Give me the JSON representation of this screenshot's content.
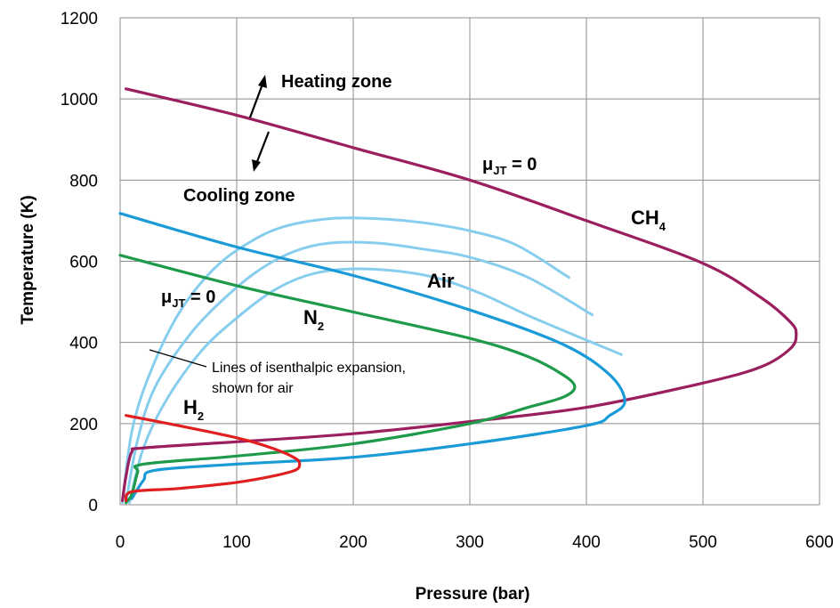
{
  "chart_data": {
    "type": "line",
    "xlabel": "Pressure (bar)",
    "ylabel": "Temperature (K)",
    "xlim": [
      0,
      600
    ],
    "ylim": [
      0,
      1200
    ],
    "x_ticks": [
      "0",
      "100",
      "200",
      "300",
      "400",
      "500",
      "600"
    ],
    "y_ticks": [
      "0",
      "200",
      "400",
      "600",
      "800",
      "1000",
      "1200"
    ],
    "grid": true,
    "series": [
      {
        "name": "CH4",
        "color": "#9b1f5e",
        "points": [
          [
            5,
            1025
          ],
          [
            100,
            960
          ],
          [
            200,
            880
          ],
          [
            300,
            800
          ],
          [
            400,
            700
          ],
          [
            500,
            595
          ],
          [
            550,
            510
          ],
          [
            575,
            450
          ],
          [
            580,
            420
          ],
          [
            575,
            385
          ],
          [
            550,
            340
          ],
          [
            500,
            300
          ],
          [
            400,
            240
          ],
          [
            300,
            205
          ],
          [
            200,
            175
          ],
          [
            100,
            155
          ],
          [
            20,
            140
          ],
          [
            10,
            130
          ],
          [
            5,
            70
          ],
          [
            2,
            10
          ]
        ]
      },
      {
        "name": "Air",
        "color": "#1a9bd7",
        "points": [
          [
            0,
            718
          ],
          [
            100,
            635
          ],
          [
            200,
            565
          ],
          [
            300,
            480
          ],
          [
            380,
            395
          ],
          [
            420,
            320
          ],
          [
            433,
            255
          ],
          [
            420,
            220
          ],
          [
            400,
            195
          ],
          [
            300,
            150
          ],
          [
            200,
            117
          ],
          [
            100,
            100
          ],
          [
            30,
            85
          ],
          [
            20,
            60
          ],
          [
            10,
            15
          ]
        ]
      },
      {
        "name": "N2",
        "color": "#1e9a4a",
        "points": [
          [
            0,
            615
          ],
          [
            100,
            540
          ],
          [
            200,
            475
          ],
          [
            300,
            410
          ],
          [
            350,
            365
          ],
          [
            380,
            320
          ],
          [
            390,
            290
          ],
          [
            380,
            265
          ],
          [
            350,
            240
          ],
          [
            300,
            200
          ],
          [
            200,
            150
          ],
          [
            100,
            120
          ],
          [
            20,
            100
          ],
          [
            15,
            80
          ],
          [
            10,
            25
          ],
          [
            5,
            5
          ]
        ]
      },
      {
        "name": "H2",
        "color": "#e02020",
        "points": [
          [
            5,
            220
          ],
          [
            50,
            195
          ],
          [
            100,
            165
          ],
          [
            130,
            140
          ],
          [
            150,
            115
          ],
          [
            154,
            100
          ],
          [
            150,
            85
          ],
          [
            130,
            70
          ],
          [
            100,
            55
          ],
          [
            50,
            40
          ],
          [
            10,
            32
          ],
          [
            5,
            10
          ]
        ]
      }
    ],
    "isenthalps": {
      "color": "#87cdee",
      "lines": [
        [
          [
            2,
            5
          ],
          [
            10,
            180
          ],
          [
            25,
            320
          ],
          [
            50,
            470
          ],
          [
            80,
            580
          ],
          [
            110,
            645
          ],
          [
            140,
            685
          ],
          [
            180,
            705
          ],
          [
            220,
            705
          ],
          [
            260,
            695
          ],
          [
            300,
            675
          ],
          [
            340,
            640
          ],
          [
            385,
            560
          ]
        ],
        [
          [
            5,
            5
          ],
          [
            15,
            160
          ],
          [
            30,
            290
          ],
          [
            60,
            420
          ],
          [
            90,
            510
          ],
          [
            120,
            580
          ],
          [
            150,
            625
          ],
          [
            180,
            645
          ],
          [
            220,
            645
          ],
          [
            260,
            630
          ],
          [
            300,
            610
          ],
          [
            350,
            560
          ],
          [
            405,
            468
          ]
        ],
        [
          [
            8,
            5
          ],
          [
            20,
            140
          ],
          [
            40,
            260
          ],
          [
            70,
            380
          ],
          [
            100,
            460
          ],
          [
            130,
            525
          ],
          [
            160,
            565
          ],
          [
            190,
            580
          ],
          [
            230,
            578
          ],
          [
            270,
            560
          ],
          [
            310,
            520
          ],
          [
            355,
            460
          ],
          [
            430,
            370
          ]
        ]
      ]
    },
    "annotations": {
      "heating_zone": "Heating zone",
      "cooling_zone": "Cooling zone",
      "mu_label": "μ",
      "mu_sub": "JT",
      "mu_eq": " = 0",
      "ch4_main": "CH",
      "ch4_sub": "4",
      "air": "Air",
      "n2_main": "N",
      "n2_sub": "2",
      "h2_main": "H",
      "h2_sub": "2",
      "isenthalp_line1": "Lines of isenthalpic expansion,",
      "isenthalp_line2": "shown for air"
    }
  }
}
